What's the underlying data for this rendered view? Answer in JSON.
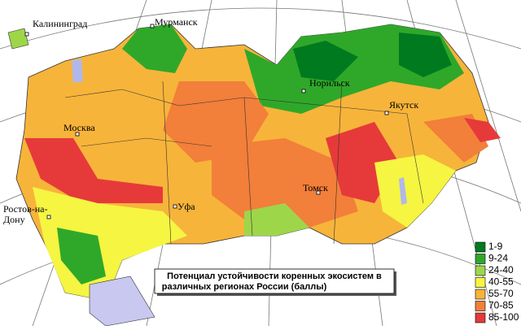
{
  "map": {
    "title_lines": [
      "Потенциал устойчивости коренных экосистем в",
      "различных регионах России (баллы)"
    ],
    "cities": [
      "Калининград",
      "Мурманск",
      "Норильск",
      "Якутск",
      "Москва",
      "Уфа",
      "Томск",
      "Ростов-на-",
      "Дону"
    ],
    "legend": [
      {
        "label": "1-9",
        "color": "#007a1f"
      },
      {
        "label": "9-24",
        "color": "#2fa82a"
      },
      {
        "label": "24-40",
        "color": "#9ed64a"
      },
      {
        "label": "40-55",
        "color": "#f5f542"
      },
      {
        "label": "55-70",
        "color": "#f7b43a"
      },
      {
        "label": "70-85",
        "color": "#f27f3a"
      },
      {
        "label": "85-100",
        "color": "#e63a3a"
      }
    ]
  }
}
